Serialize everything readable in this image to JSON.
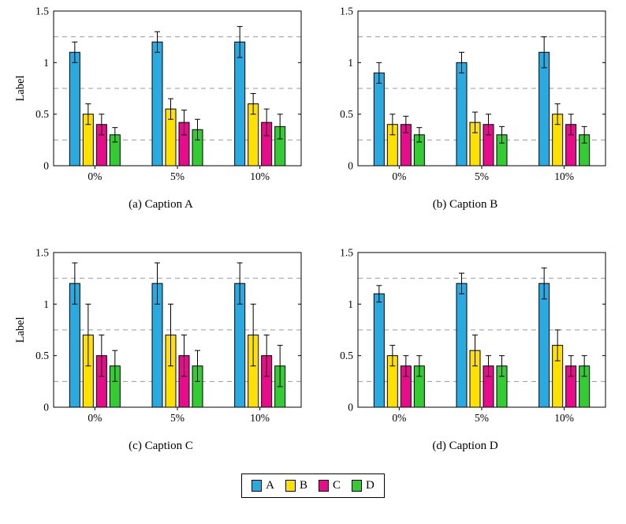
{
  "colors": {
    "A": "#29abe2",
    "B": "#ffe100",
    "C": "#e80c8c",
    "D": "#33cc33",
    "axis": "#000000",
    "grid": "#9a9a9a"
  },
  "legend": {
    "entries": [
      {
        "key": "A",
        "label": "A"
      },
      {
        "key": "B",
        "label": "B"
      },
      {
        "key": "C",
        "label": "C"
      },
      {
        "key": "D",
        "label": "D"
      }
    ]
  },
  "chart_data": [
    {
      "id": "a",
      "type": "bar",
      "caption": "(a) Caption A",
      "ylabel": "Label",
      "show_ylabel": true,
      "ylim": [
        0,
        1.5
      ],
      "yticks": [
        0,
        0.5,
        1,
        1.5
      ],
      "gridlines": [
        0.25,
        0.75,
        1.25
      ],
      "categories": [
        "0%",
        "5%",
        "10%"
      ],
      "series": [
        {
          "name": "A",
          "values": [
            1.1,
            1.2,
            1.2
          ],
          "errors": [
            0.1,
            0.1,
            0.15
          ]
        },
        {
          "name": "B",
          "values": [
            0.5,
            0.55,
            0.6
          ],
          "errors": [
            0.1,
            0.1,
            0.1
          ]
        },
        {
          "name": "C",
          "values": [
            0.4,
            0.42,
            0.42
          ],
          "errors": [
            0.1,
            0.12,
            0.13
          ]
        },
        {
          "name": "D",
          "values": [
            0.3,
            0.35,
            0.38
          ],
          "errors": [
            0.07,
            0.1,
            0.12
          ]
        }
      ]
    },
    {
      "id": "b",
      "type": "bar",
      "caption": "(b) Caption B",
      "ylabel": "Label",
      "show_ylabel": false,
      "ylim": [
        0,
        1.5
      ],
      "yticks": [
        0,
        0.5,
        1,
        1.5
      ],
      "gridlines": [
        0.25,
        0.75,
        1.25
      ],
      "categories": [
        "0%",
        "5%",
        "10%"
      ],
      "series": [
        {
          "name": "A",
          "values": [
            0.9,
            1.0,
            1.1
          ],
          "errors": [
            0.1,
            0.1,
            0.15
          ]
        },
        {
          "name": "B",
          "values": [
            0.4,
            0.42,
            0.5
          ],
          "errors": [
            0.1,
            0.1,
            0.1
          ]
        },
        {
          "name": "C",
          "values": [
            0.4,
            0.4,
            0.4
          ],
          "errors": [
            0.08,
            0.1,
            0.1
          ]
        },
        {
          "name": "D",
          "values": [
            0.3,
            0.3,
            0.3
          ],
          "errors": [
            0.07,
            0.08,
            0.08
          ]
        }
      ]
    },
    {
      "id": "c",
      "type": "bar",
      "caption": "(c) Caption C",
      "ylabel": "Label",
      "show_ylabel": true,
      "ylim": [
        0,
        1.5
      ],
      "yticks": [
        0,
        0.5,
        1,
        1.5
      ],
      "gridlines": [
        0.25,
        0.75,
        1.25
      ],
      "categories": [
        "0%",
        "5%",
        "10%"
      ],
      "series": [
        {
          "name": "A",
          "values": [
            1.2,
            1.2,
            1.2
          ],
          "errors": [
            0.2,
            0.2,
            0.2
          ]
        },
        {
          "name": "B",
          "values": [
            0.7,
            0.7,
            0.7
          ],
          "errors": [
            0.3,
            0.3,
            0.3
          ]
        },
        {
          "name": "C",
          "values": [
            0.5,
            0.5,
            0.5
          ],
          "errors": [
            0.2,
            0.2,
            0.2
          ]
        },
        {
          "name": "D",
          "values": [
            0.4,
            0.4,
            0.4
          ],
          "errors": [
            0.15,
            0.15,
            0.2
          ]
        }
      ]
    },
    {
      "id": "d",
      "type": "bar",
      "caption": "(d) Caption D",
      "ylabel": "Label",
      "show_ylabel": false,
      "ylim": [
        0,
        1.5
      ],
      "yticks": [
        0,
        0.5,
        1,
        1.5
      ],
      "gridlines": [
        0.25,
        0.75,
        1.25
      ],
      "categories": [
        "0%",
        "5%",
        "10%"
      ],
      "series": [
        {
          "name": "A",
          "values": [
            1.1,
            1.2,
            1.2
          ],
          "errors": [
            0.08,
            0.1,
            0.15
          ]
        },
        {
          "name": "B",
          "values": [
            0.5,
            0.55,
            0.6
          ],
          "errors": [
            0.1,
            0.15,
            0.15
          ]
        },
        {
          "name": "C",
          "values": [
            0.4,
            0.4,
            0.4
          ],
          "errors": [
            0.1,
            0.1,
            0.1
          ]
        },
        {
          "name": "D",
          "values": [
            0.4,
            0.4,
            0.4
          ],
          "errors": [
            0.1,
            0.1,
            0.1
          ]
        }
      ]
    }
  ]
}
